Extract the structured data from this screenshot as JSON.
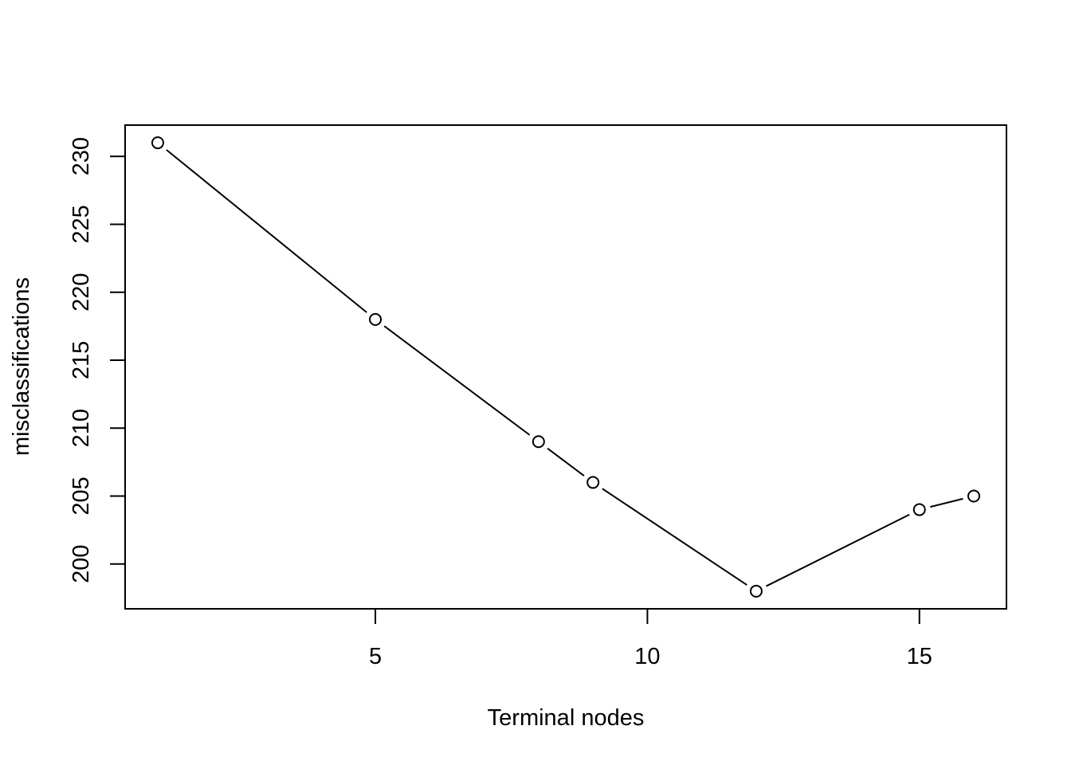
{
  "chart_data": {
    "type": "line",
    "title": "",
    "xlabel": "Terminal nodes",
    "ylabel": "misclassifications",
    "x": [
      1,
      5,
      8,
      9,
      12,
      15,
      16
    ],
    "series": [
      {
        "values": [
          231,
          218,
          209,
          206,
          198,
          204,
          205
        ]
      }
    ],
    "xlim": [
      0.4,
      16.6
    ],
    "ylim": [
      196.7,
      232.3
    ],
    "x_ticks": [
      5,
      10,
      15
    ],
    "y_ticks": [
      200,
      205,
      210,
      215,
      220,
      225,
      230
    ],
    "grid": false,
    "legend": "none",
    "line_color": "#000000",
    "marker": "open-circle"
  }
}
